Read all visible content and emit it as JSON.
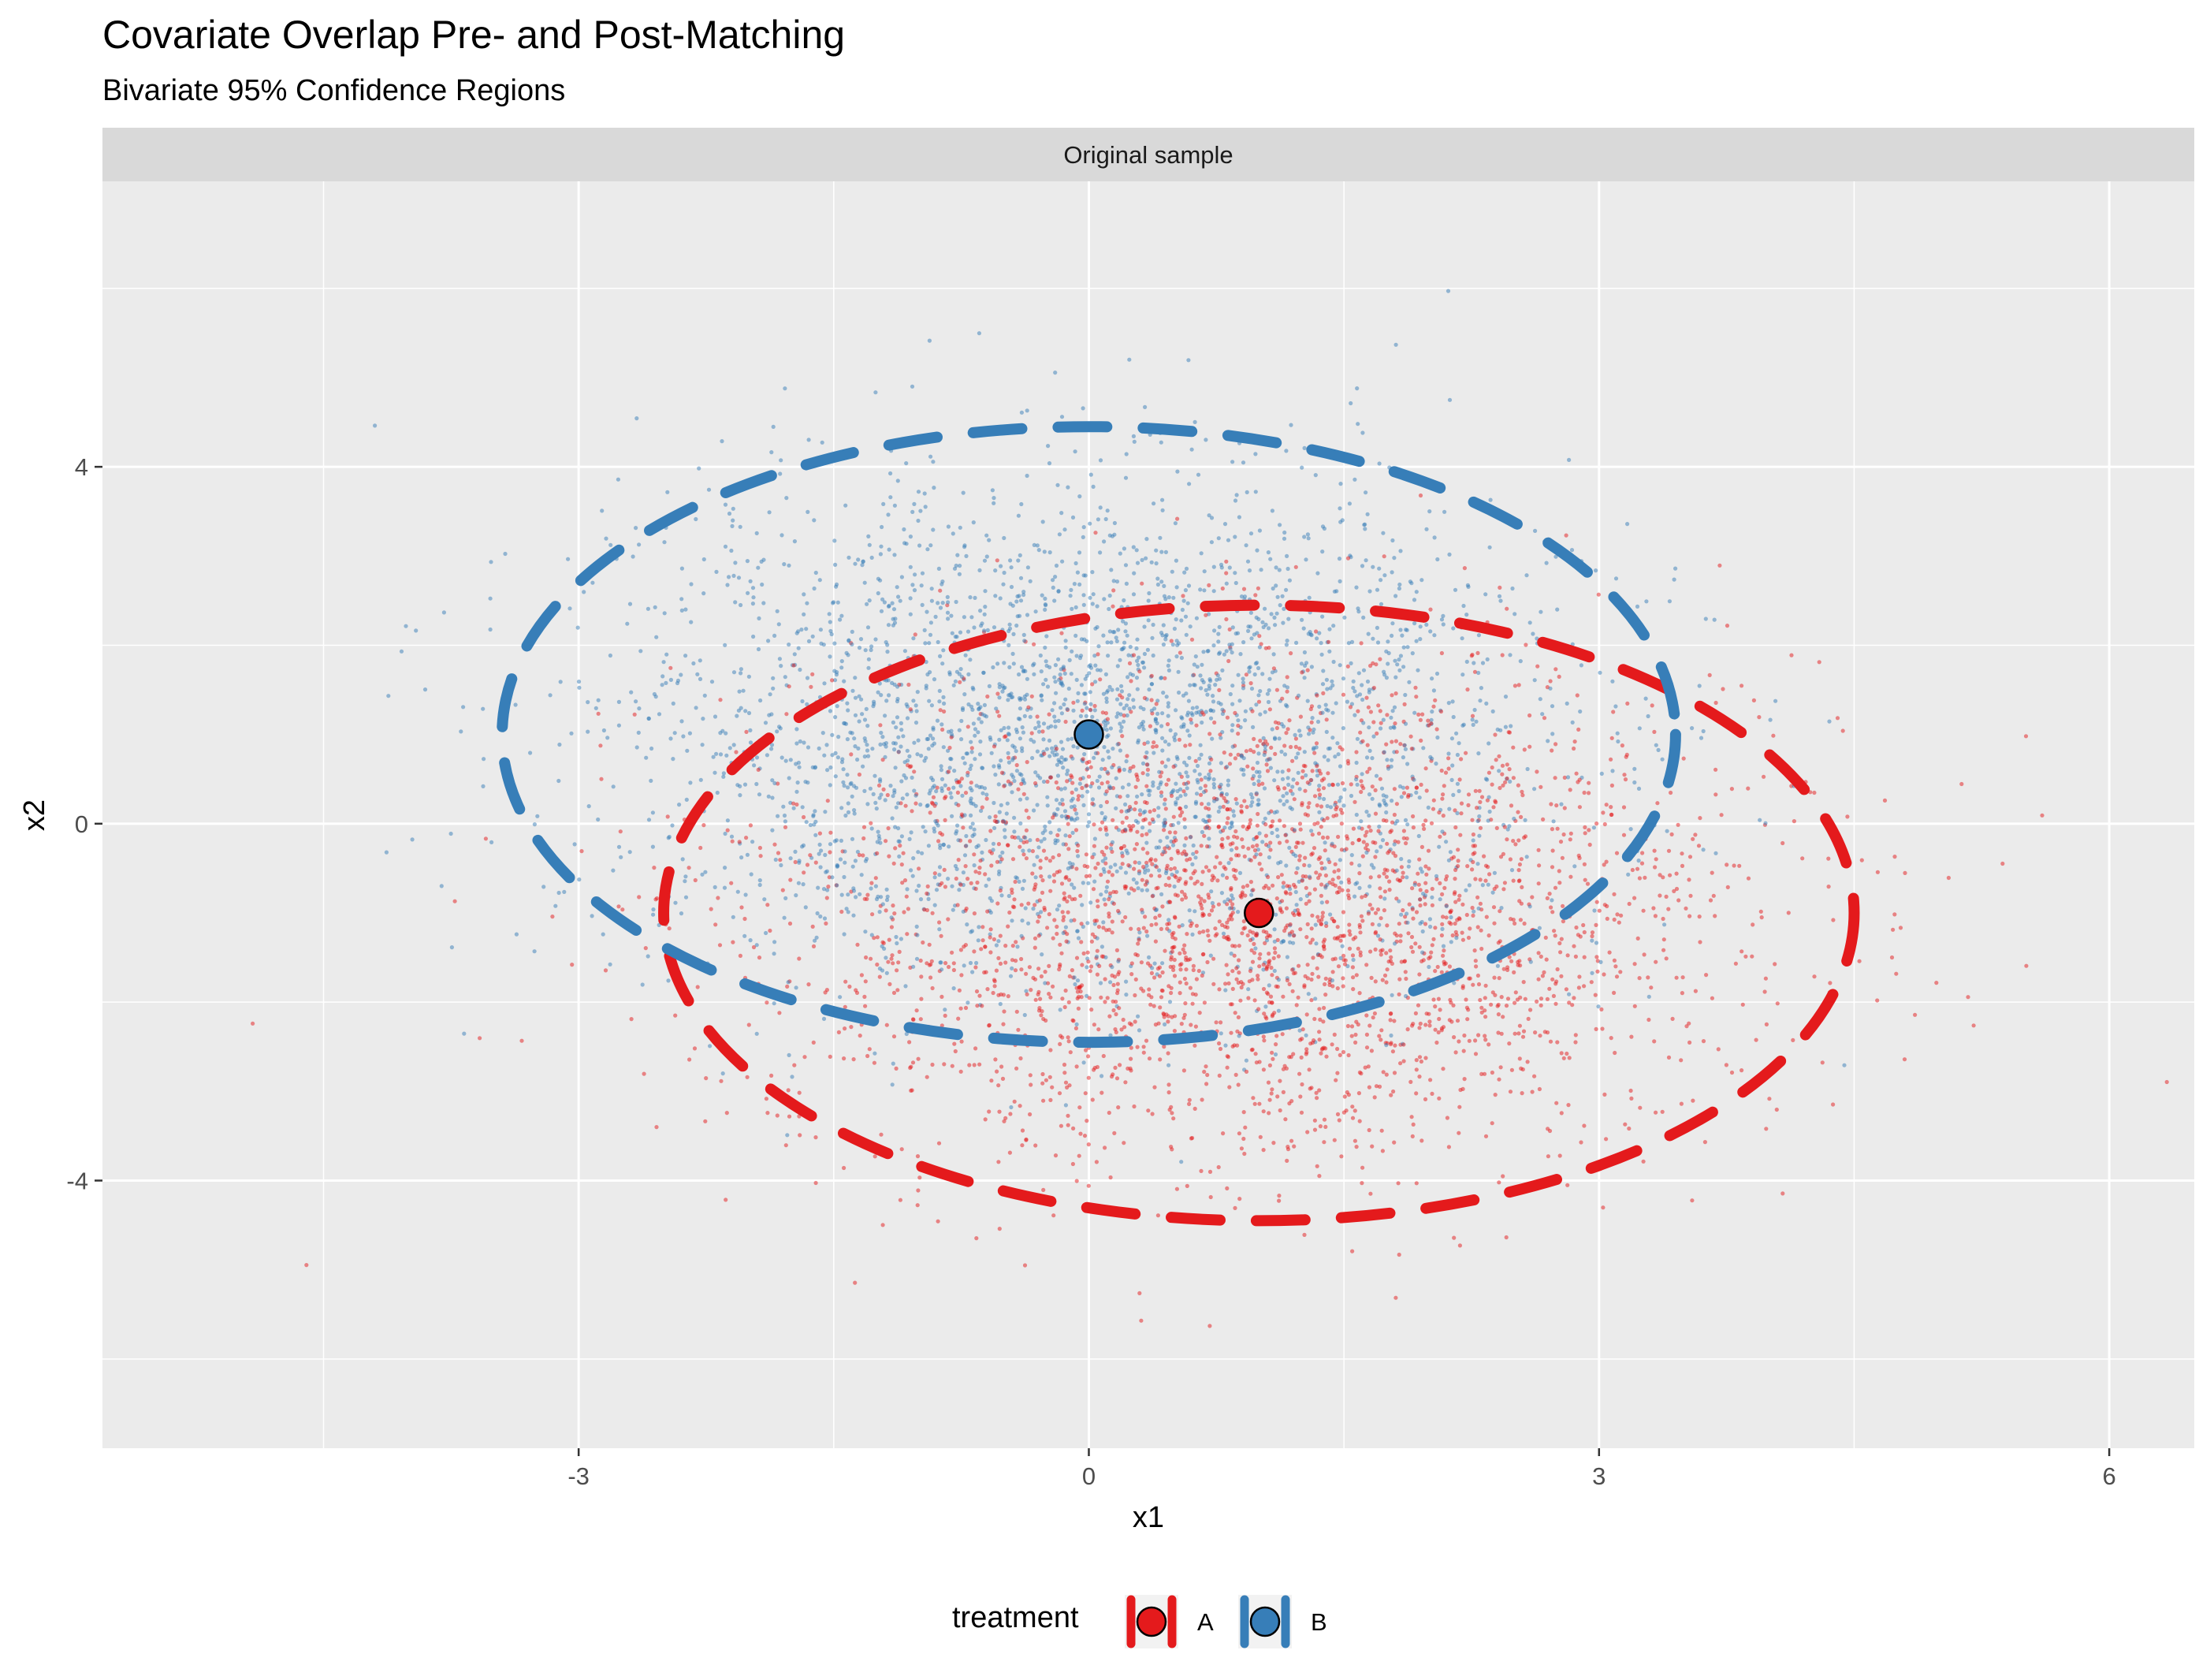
{
  "chart_data": {
    "type": "scatter",
    "title": "Covariate Overlap Pre- and Post-Matching",
    "subtitle": "Bivariate 95% Confidence Regions",
    "facet": "Original sample",
    "xlabel": "x1",
    "ylabel": "x2",
    "xlim": [
      -5.8,
      6.5
    ],
    "ylim": [
      -7.0,
      7.2
    ],
    "x_ticks": [
      -3,
      0,
      3,
      6
    ],
    "y_ticks": [
      -4,
      0,
      4
    ],
    "x_tick_labels": [
      "-3",
      "0",
      "3",
      "6"
    ],
    "y_tick_labels": [
      "-4",
      "0",
      "4"
    ],
    "grid": true,
    "legend": {
      "title": "treatment",
      "position": "bottom",
      "entries": [
        "A",
        "B"
      ]
    },
    "series": [
      {
        "name": "A",
        "color": "#e41a1c",
        "mean": [
          1.0,
          -1.0
        ],
        "ellipse_95": {
          "center": [
            1.0,
            -1.0
          ],
          "radius_x1": 3.5,
          "radius_x2": 3.45
        },
        "n_points_approx": 3000
      },
      {
        "name": "B",
        "color": "#377eb8",
        "mean": [
          0.0,
          1.0
        ],
        "ellipse_95": {
          "center": [
            0.0,
            1.0
          ],
          "radius_x1": 3.45,
          "radius_x2": 3.45
        },
        "n_points_approx": 3000
      }
    ]
  },
  "colors": {
    "panel_background": "#ebebeb",
    "grid": "#ffffff",
    "strip_background": "#d9d9d9",
    "A": "#e41a1c",
    "B": "#377eb8"
  }
}
